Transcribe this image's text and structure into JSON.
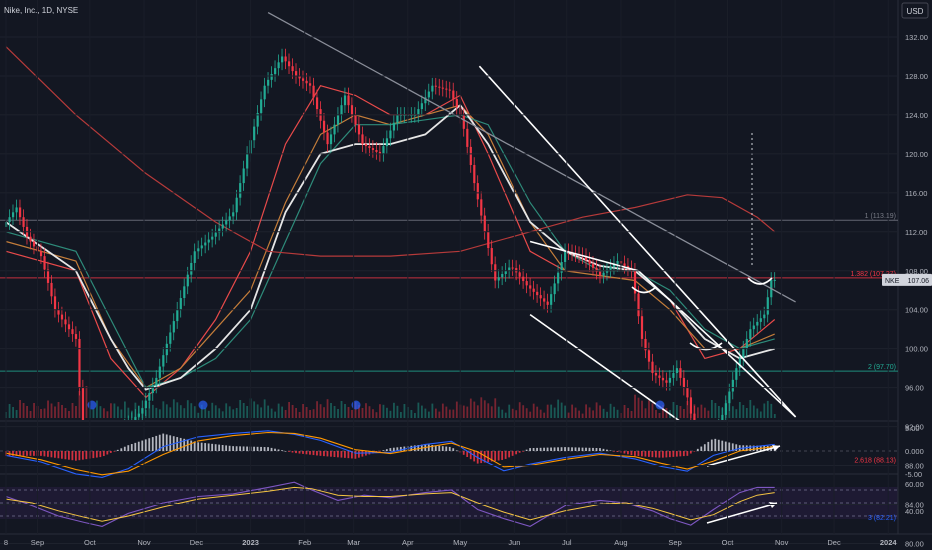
{
  "header": {
    "symbol_title": "Nike, Inc., 1D, NYSE",
    "currency_button": "USD"
  },
  "chart_data": {
    "type": "line",
    "price_axis": {
      "ylim": [
        78,
        134
      ],
      "ticks": [
        "132.00",
        "128.00",
        "124.00",
        "120.00",
        "116.00",
        "112.00",
        "108.00",
        "104.00",
        "100.00",
        "96.00",
        "92.00",
        "88.00",
        "84.00",
        "80.00"
      ]
    },
    "time_axis": {
      "ticks": [
        {
          "label": "8",
          "day": 0
        },
        {
          "label": "Sep",
          "day": 18
        },
        {
          "label": "Oct",
          "day": 48
        },
        {
          "label": "Nov",
          "day": 79
        },
        {
          "label": "Dec",
          "day": 109
        },
        {
          "label": "2023",
          "day": 140
        },
        {
          "label": "Feb",
          "day": 171
        },
        {
          "label": "Mar",
          "day": 199
        },
        {
          "label": "Apr",
          "day": 230
        },
        {
          "label": "May",
          "day": 260
        },
        {
          "label": "Jun",
          "day": 291
        },
        {
          "label": "Jul",
          "day": 321
        },
        {
          "label": "Aug",
          "day": 352
        },
        {
          "label": "Sep",
          "day": 383
        },
        {
          "label": "Oct",
          "day": 413
        },
        {
          "label": "Nov",
          "day": 444
        },
        {
          "label": "Dec",
          "day": 474
        },
        {
          "label": "2024",
          "day": 505
        }
      ]
    },
    "last_price": {
      "symbol": "NKE",
      "value": "107.06"
    },
    "fib_levels": [
      {
        "label": "1 (113.19)",
        "price": 113.19,
        "color": "#787b86"
      },
      {
        "label": "1.382 (107.27)",
        "price": 107.27,
        "color": "#f23645"
      },
      {
        "label": "2 (97.70)",
        "price": 97.7,
        "color": "#22ab94"
      },
      {
        "label": "2.618 (88.13)",
        "price": 88.13,
        "color": "#f23645"
      },
      {
        "label": "3 (82.21)",
        "price": 82.21,
        "color": "#2962ff"
      },
      {
        "label": "3.272 (78.00)",
        "price": 78.0,
        "color": "#787b86"
      }
    ],
    "price_path_days": [
      0,
      8,
      14,
      22,
      30,
      42,
      48,
      55,
      62,
      70,
      79,
      88,
      100,
      110,
      120,
      132,
      140,
      150,
      160,
      168,
      176,
      186,
      196,
      206,
      216,
      226,
      236,
      246,
      256,
      263,
      270,
      276,
      282,
      291,
      300,
      312,
      322,
      332,
      342,
      352,
      360,
      366,
      372,
      380,
      386,
      392,
      398,
      404,
      410,
      420,
      428,
      436,
      440
    ],
    "price_path_values": [
      112.5,
      114.5,
      111.5,
      109.5,
      104,
      101,
      86,
      89,
      87.5,
      92,
      93.5,
      97,
      104,
      110,
      111.5,
      114,
      120,
      127,
      130,
      128,
      127,
      121,
      126,
      121,
      120,
      124,
      124,
      127,
      126.5,
      123.5,
      117,
      112,
      107,
      108.5,
      106.5,
      104.5,
      110,
      109.5,
      107.5,
      109,
      108,
      101,
      97.5,
      96.5,
      98,
      95,
      90,
      89,
      92,
      98,
      102,
      103.5,
      107.06
    ],
    "ma_series": [
      {
        "days": [
          0,
          40,
          60,
          80,
          100,
          120,
          140,
          160,
          180,
          200,
          220,
          240,
          260,
          276,
          300,
          320,
          340,
          360,
          380,
          400,
          420,
          440
        ],
        "values": [
          110,
          108,
          99,
          95,
          98,
          103,
          110,
          121,
          127,
          126,
          124,
          124,
          126,
          120,
          110,
          108,
          108,
          108,
          105,
          99,
          100,
          103
        ],
        "color": "#e84a4a"
      },
      {
        "days": [
          0,
          40,
          60,
          80,
          100,
          120,
          140,
          160,
          180,
          200,
          220,
          240,
          260,
          276,
          300,
          320,
          340,
          360,
          380,
          400,
          420,
          440
        ],
        "values": [
          111,
          109,
          101,
          96,
          98,
          102,
          106,
          115,
          122,
          124,
          123,
          124,
          125,
          122,
          113,
          108,
          107.5,
          107,
          104,
          100,
          100,
          101.5
        ],
        "color": "#c47d3a"
      },
      {
        "days": [
          0,
          40,
          60,
          80,
          100,
          120,
          140,
          160,
          180,
          200,
          220,
          240,
          260,
          276,
          300,
          320,
          340,
          360,
          380,
          400,
          420,
          440
        ],
        "values": [
          112,
          110,
          103,
          96,
          97,
          99,
          103,
          111,
          119,
          123,
          123,
          123.5,
          124,
          123,
          115,
          110,
          108,
          108,
          106,
          102,
          100,
          101
        ],
        "color": "#2e8b7a"
      },
      {
        "days": [
          0,
          40,
          60,
          70,
          80,
          100,
          120,
          140,
          160,
          180,
          200,
          220,
          240,
          260,
          276,
          300,
          320,
          340,
          360,
          380,
          400,
          420,
          440
        ],
        "values": [
          113,
          108,
          101,
          98,
          95.8,
          97,
          100,
          104,
          114,
          120,
          121,
          121,
          122,
          125,
          121,
          113,
          110,
          108.5,
          108,
          105,
          101,
          99,
          100
        ],
        "color": "#e6e6e6"
      },
      {
        "days": [
          0,
          40,
          80,
          120,
          150,
          180,
          220,
          260,
          300,
          330,
          360,
          390,
          410,
          430,
          440
        ],
        "values": [
          131,
          124,
          118,
          113,
          110,
          109.5,
          109.5,
          110,
          112,
          113.5,
          114.5,
          115.8,
          115.5,
          113.5,
          112
        ],
        "color": "#b63a3a"
      }
    ],
    "trendlines": [
      {
        "color": "#8a8e99",
        "points": [
          [
            150,
            134.5
          ],
          [
            452,
            104.8
          ]
        ]
      },
      {
        "color": "#ffffff",
        "points": [
          [
            271,
            129
          ],
          [
            452,
            93
          ]
        ]
      },
      {
        "color": "#ffffff",
        "points": [
          [
            300,
            103.5
          ],
          [
            445,
            85
          ]
        ]
      },
      {
        "color": "#ffffff",
        "points": [
          [
            300,
            111
          ],
          [
            362,
            108
          ],
          [
            452,
            93
          ]
        ]
      },
      {
        "color": "#8a8e99",
        "points": [
          [
            48,
            82.5
          ],
          [
            540,
            91.2
          ]
        ]
      }
    ],
    "macd": {
      "ticks": [
        "5.00",
        "0.000",
        "-5.00"
      ],
      "days": [
        0,
        20,
        40,
        55,
        70,
        90,
        110,
        130,
        150,
        165,
        180,
        200,
        220,
        240,
        255,
        270,
        285,
        300,
        320,
        340,
        360,
        375,
        390,
        405,
        420,
        440
      ],
      "macd": [
        -1,
        -2.5,
        -5.2,
        -6.0,
        -4.0,
        1.0,
        3.2,
        4.0,
        4.6,
        3.8,
        2.4,
        -0.5,
        -0.3,
        1.5,
        2.2,
        -1.5,
        -4.5,
        -3.0,
        -1.5,
        -0.5,
        -1.8,
        -3.5,
        -4.6,
        -1.0,
        0.6,
        1.5
      ],
      "signal": [
        -0.5,
        -2,
        -4.2,
        -5.4,
        -4.6,
        -0.8,
        2.3,
        3.5,
        4.2,
        4.0,
        2.9,
        0.3,
        -0.6,
        0.8,
        1.8,
        -0.2,
        -3.6,
        -3.3,
        -1.9,
        -0.8,
        -1.3,
        -2.8,
        -4.1,
        -2.3,
        0.0,
        1.0
      ]
    },
    "rsi": {
      "ticks": [
        "60.00",
        "40.00"
      ],
      "days": [
        0,
        15,
        30,
        45,
        55,
        70,
        90,
        110,
        130,
        150,
        165,
        175,
        190,
        205,
        220,
        240,
        255,
        270,
        285,
        300,
        320,
        340,
        355,
        370,
        380,
        392,
        405,
        420,
        430,
        440
      ],
      "values": [
        55,
        48,
        40,
        35,
        32,
        42,
        50,
        55,
        57,
        62,
        66,
        60,
        52,
        56,
        54,
        58,
        60,
        45,
        38,
        32,
        48,
        52,
        50,
        44,
        38,
        33,
        45,
        58,
        62,
        62
      ],
      "ma": [
        53,
        50,
        44,
        39,
        36,
        40,
        47,
        53,
        56,
        59,
        62,
        61,
        56,
        55,
        55,
        57,
        58,
        50,
        43,
        37,
        44,
        49,
        50,
        46,
        42,
        37,
        41,
        51,
        56,
        58
      ]
    }
  }
}
